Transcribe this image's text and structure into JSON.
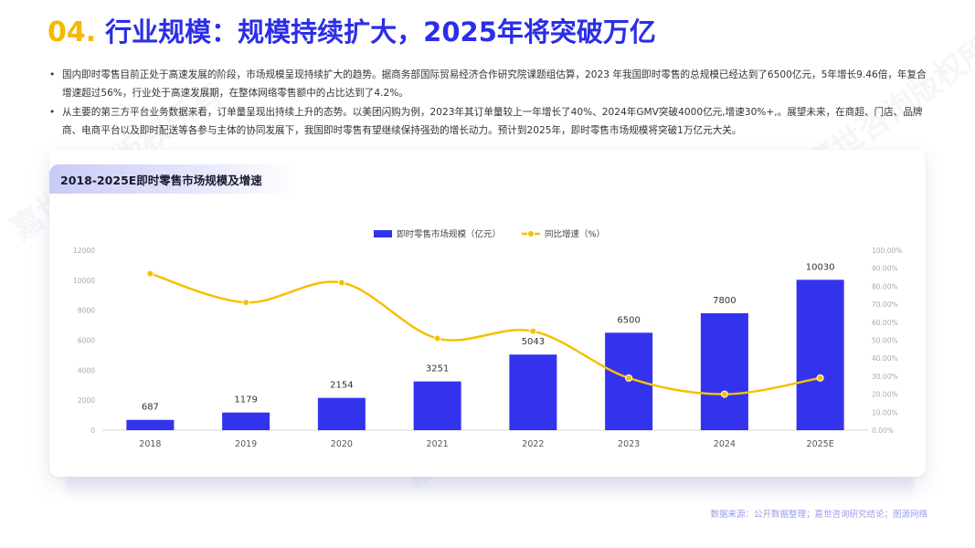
{
  "title": {
    "number": "04.",
    "text": "行业规模：规模持续扩大，2025年将突破万亿"
  },
  "bullets": [
    "国内即时零售目前正处于高速发展的阶段，市场规模呈现持续扩大的趋势。据商务部国际贸易经济合作研究院课题组估算，2023 年我国即时零售的总规模已经达到了6500亿元，5年增长9.46倍，年复合增速超过56%，行业处于高速发展期，在整体网络零售额中的占比达到了4.2%。",
    "从主要的第三方平台业务数据来看，订单量呈现出持续上升的态势。以美团闪购为例，2023年其订单量较上一年增长了40%、2024年GMV突破4000亿元,增速30%+,。展望未来，在商超、门店、品牌商、电商平台以及即时配送等各参与主体的协同发展下，我国即时零售有望继续保持强劲的增长动力。预计到2025年，即时零售市场规模将突破1万亿元大关。"
  ],
  "card_title": "2018-2025E即时零售市场规模及增速",
  "source": "数据来源：公开数据整理；嘉世咨询研究结论；图源网络",
  "watermark": "嘉世咨询版权所有",
  "colors": {
    "bar": "#3333ee",
    "line": "#f5c000",
    "title_num": "#f5b800",
    "title_text": "#2b2ee8"
  },
  "chart_data": {
    "type": "bar",
    "categories": [
      "2018",
      "2019",
      "2020",
      "2021",
      "2022",
      "2023",
      "2024",
      "2025E"
    ],
    "series": [
      {
        "name": "即时零售市场规模（亿元）",
        "type": "bar",
        "axis": "left",
        "values": [
          687,
          1179,
          2154,
          3251,
          5043,
          6500,
          7800,
          10030
        ]
      },
      {
        "name": "同比增速（%）",
        "type": "line",
        "axis": "right",
        "values": [
          87,
          71,
          82,
          51,
          55,
          29,
          20,
          29
        ]
      }
    ],
    "y_left": {
      "range": [
        0,
        12000
      ],
      "ticks": [
        "0",
        "2000",
        "4000",
        "6000",
        "8000",
        "10000",
        "12000"
      ]
    },
    "y_right": {
      "range": [
        0,
        100
      ],
      "ticks": [
        "0.00%",
        "10.00%",
        "20.00%",
        "30.00%",
        "40.00%",
        "50.00%",
        "60.00%",
        "70.00%",
        "80.00%",
        "90.00%",
        "100.00%"
      ]
    },
    "legend": "top-center",
    "grid": false
  }
}
